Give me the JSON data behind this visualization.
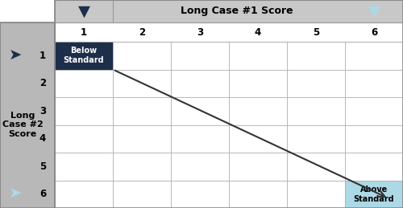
{
  "title": "Long Case #1 Score",
  "left_label": "Long\nCase #2\nScore",
  "col_labels": [
    "1",
    "2",
    "3",
    "4",
    "5",
    "6"
  ],
  "row_labels": [
    "1",
    "2",
    "3",
    "4",
    "5",
    "6"
  ],
  "below_standard_text": "Below\nStandard",
  "above_standard_text": "Above\nStandard",
  "below_standard_bg": "#1c2e4a",
  "below_standard_fg": "#ffffff",
  "above_standard_bg": "#add8e6",
  "above_standard_fg": "#000000",
  "header_bg": "#c8c8c8",
  "header_fg": "#000000",
  "left_panel_bg": "#b8b8b8",
  "left_panel_fg": "#000000",
  "cell_bg": "#ffffff",
  "dark_arrow_color": "#1c2e4a",
  "light_arrow_color": "#add8e6",
  "diagonal_arrow_color": "#333333",
  "figsize": [
    5.0,
    2.59
  ],
  "dpi": 100,
  "fig_bg": "#ffffff"
}
